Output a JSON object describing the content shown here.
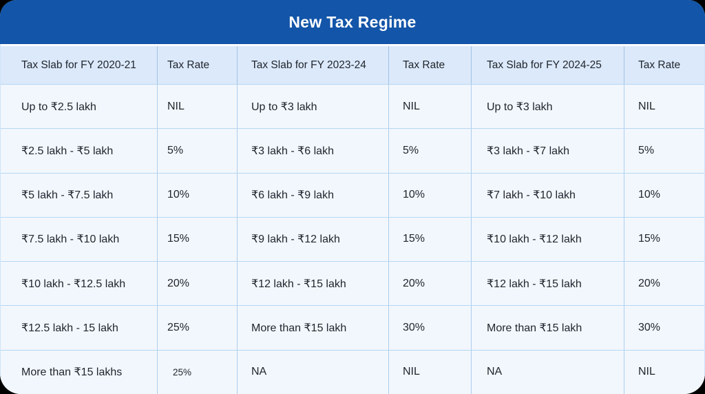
{
  "card": {
    "title": "New Tax Regime"
  },
  "colors": {
    "title_band_bg": "#1355a8",
    "title_text": "#ffffff",
    "header_row_bg": "#dbe9fa",
    "body_row_bg": "#f2f7fd",
    "grid_border": "#b5d7f3",
    "cell_text": "#21252e",
    "page_background": "#000000"
  },
  "chart_data": {
    "type": "table",
    "title": "New Tax Regime",
    "columns": [
      "Tax Slab for FY 2020-21",
      "Tax Rate",
      "Tax Slab for FY 2023-24",
      "Tax Rate",
      "Tax Slab for FY 2024-25",
      "Tax Rate"
    ],
    "rows": [
      [
        "Up to ₹2.5 lakh",
        "NIL",
        "Up to ₹3 lakh",
        "NIL",
        "Up to ₹3 lakh",
        "NIL"
      ],
      [
        "₹2.5 lakh - ₹5 lakh",
        "5%",
        "₹3 lakh - ₹6 lakh",
        "5%",
        "₹3 lakh - ₹7 lakh",
        "5%"
      ],
      [
        "₹5 lakh - ₹7.5 lakh",
        "10%",
        "₹6 lakh - ₹9 lakh",
        "10%",
        "₹7 lakh - ₹10 lakh",
        "10%"
      ],
      [
        "₹7.5 lakh - ₹10 lakh",
        "15%",
        "₹9 lakh - ₹12 lakh",
        "15%",
        "₹10 lakh - ₹12 lakh",
        "15%"
      ],
      [
        "₹10 lakh - ₹12.5 lakh",
        "20%",
        "₹12 lakh - ₹15 lakh",
        "20%",
        "₹12 lakh - ₹15 lakh",
        "20%"
      ],
      [
        "₹12.5 lakh - 15 lakh",
        "25%",
        "More than ₹15 lakh",
        "30%",
        "More than ₹15 lakh",
        "30%"
      ],
      [
        "More than ₹15 lakhs",
        "25%",
        "NA",
        "NIL",
        "NA",
        "NIL"
      ]
    ]
  }
}
